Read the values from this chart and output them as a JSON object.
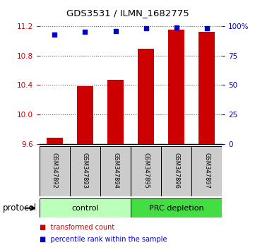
{
  "title": "GDS3531 / ILMN_1682775",
  "samples": [
    "GSM347892",
    "GSM347893",
    "GSM347894",
    "GSM347895",
    "GSM347896",
    "GSM347897"
  ],
  "bar_values": [
    9.68,
    10.38,
    10.47,
    10.89,
    11.15,
    11.12
  ],
  "dot_values": [
    93,
    95,
    96,
    98,
    99,
    98
  ],
  "ylim": [
    9.6,
    11.2
  ],
  "y_ticks": [
    9.6,
    10.0,
    10.4,
    10.8,
    11.2
  ],
  "right_yticks": [
    0,
    25,
    50,
    75,
    100
  ],
  "right_ytick_labels": [
    "0",
    "25",
    "50",
    "75",
    "100%"
  ],
  "bar_color": "#cc0000",
  "dot_color": "#0000cc",
  "control_color": "#bbffbb",
  "prc_color": "#44dd44",
  "sample_box_color": "#cccccc",
  "protocol_label": "protocol",
  "legend_items": [
    {
      "color": "#cc0000",
      "label": "transformed count"
    },
    {
      "color": "#0000cc",
      "label": "percentile rank within the sample"
    }
  ],
  "grid_color": "#555555",
  "left_tick_color": "#cc0000",
  "right_tick_color": "#0000cc"
}
